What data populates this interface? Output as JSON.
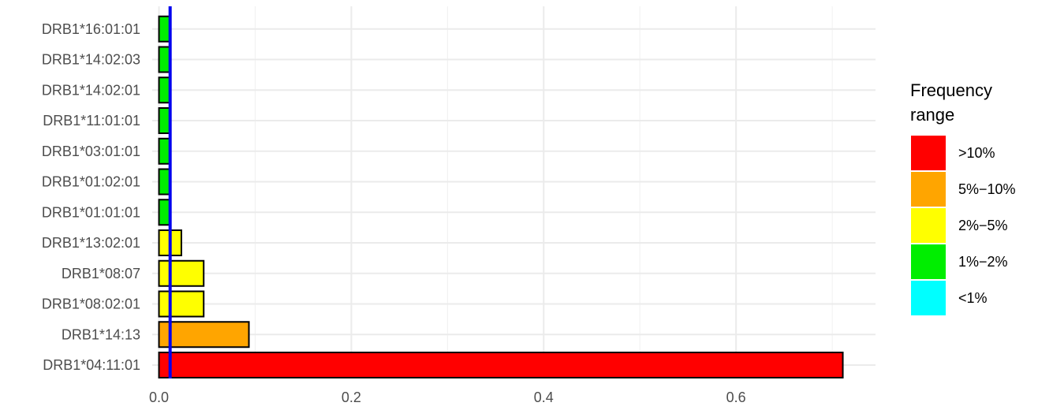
{
  "chart_data": {
    "type": "bar",
    "orientation": "horizontal",
    "categories": [
      "DRB1*04:11:01",
      "DRB1*14:13",
      "DRB1*08:02:01",
      "DRB1*08:07",
      "DRB1*13:02:01",
      "DRB1*01:01:01",
      "DRB1*01:02:01",
      "DRB1*03:01:01",
      "DRB1*11:01:01",
      "DRB1*14:02:01",
      "DRB1*14:02:03",
      "DRB1*16:01:01"
    ],
    "values": [
      0.711,
      0.0935,
      0.0465,
      0.0465,
      0.0233,
      0.0116,
      0.0116,
      0.0116,
      0.0116,
      0.0116,
      0.0116,
      0.0116
    ],
    "bar_colors": [
      "#ff0000",
      "#ffa500",
      "#ffff00",
      "#ffff00",
      "#ffff00",
      "#00ee00",
      "#00ee00",
      "#00ee00",
      "#00ee00",
      "#00ee00",
      "#00ee00",
      "#00ee00"
    ],
    "xlim": [
      -0.007,
      0.745
    ],
    "x_ticks": [
      0.0,
      0.2,
      0.4,
      0.6
    ],
    "x_tick_labels": [
      "0.0",
      "0.2",
      "0.4",
      "0.6"
    ],
    "reference_line": {
      "x": 0.0116,
      "color": "#0000ee"
    },
    "grid": true,
    "xlabel": "",
    "ylabel": "",
    "legend": {
      "position": "right",
      "title_lines": [
        "Frequency",
        "range"
      ],
      "entries": [
        {
          "label": ">10%",
          "color": "#ff0000"
        },
        {
          "label": "5%−10%",
          "color": "#ffa500"
        },
        {
          "label": "2%−5%",
          "color": "#ffff00"
        },
        {
          "label": "1%−2%",
          "color": "#00ee00"
        },
        {
          "label": "<1%",
          "color": "#00ffff"
        }
      ]
    }
  }
}
